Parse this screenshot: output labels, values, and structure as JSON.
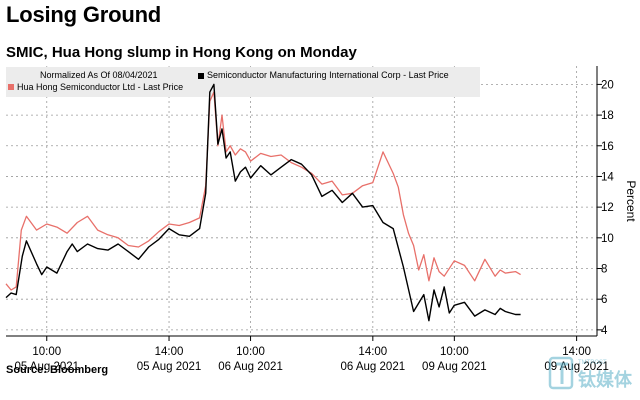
{
  "header": {
    "title": "Losing Ground",
    "subtitle": "SMIC, Hua Hong slump in Hong Kong on Monday"
  },
  "footer": {
    "source": "Source: Bloomberg"
  },
  "watermark": {
    "text": "钛媒体",
    "small": "TMTPOST"
  },
  "chart_data": {
    "type": "line",
    "legend": {
      "note": "Normalized As Of 08/04/2021",
      "placement": "top-left"
    },
    "ylabel": "Percent",
    "ylim": [
      3.6,
      21.2
    ],
    "yticks": [
      4,
      6,
      8,
      10,
      12,
      14,
      16,
      18,
      20
    ],
    "x_range": [
      0,
      58
    ],
    "x_ticks": [
      {
        "x": 4,
        "time": "10:00",
        "date": "05 Aug 2021"
      },
      {
        "x": 16,
        "time": "14:00",
        "date": "05 Aug 2021"
      },
      {
        "x": 24,
        "time": "10:00",
        "date": "06 Aug 2021"
      },
      {
        "x": 36,
        "time": "14:00",
        "date": "06 Aug 2021"
      },
      {
        "x": 44,
        "time": "10:00",
        "date": "09 Aug 2021"
      },
      {
        "x": 56,
        "time": "14:00",
        "date": "09 Aug 2021"
      }
    ],
    "grid": true,
    "series": [
      {
        "name": "Semiconductor Manufacturing International Corp - Last Price",
        "color": "#000000",
        "x": [
          0,
          0.5,
          1,
          1.6,
          2,
          3,
          3.5,
          4,
          5,
          6,
          6.5,
          7,
          8,
          9,
          10,
          11,
          12,
          13,
          14,
          15,
          16,
          17,
          18,
          19,
          19.6,
          20,
          20.4,
          20.8,
          21.2,
          21.6,
          22,
          22.5,
          23,
          23.5,
          24,
          25,
          26,
          27,
          28,
          29,
          30,
          31,
          32,
          33,
          34,
          35,
          36,
          37,
          38,
          39,
          40,
          41,
          41.5,
          42,
          42.5,
          43,
          43.5,
          44,
          45,
          46,
          47,
          48,
          48.5,
          49,
          50,
          50.5
        ],
        "y": [
          6.1,
          6.4,
          6.3,
          8.8,
          9.8,
          8.3,
          7.6,
          8.1,
          7.7,
          9.1,
          9.6,
          9.1,
          9.6,
          9.3,
          9.2,
          9.6,
          9.1,
          8.6,
          9.4,
          9.9,
          10.6,
          10.2,
          10.1,
          10.6,
          12.9,
          19.5,
          20.0,
          16.1,
          17.1,
          15.2,
          15.6,
          13.7,
          14.3,
          14.6,
          13.9,
          14.7,
          14.1,
          14.6,
          15.1,
          14.8,
          14.1,
          12.7,
          13.1,
          12.3,
          12.9,
          12.0,
          12.1,
          11.0,
          10.6,
          8.1,
          5.2,
          6.3,
          4.6,
          6.6,
          5.5,
          6.8,
          5.1,
          5.6,
          5.8,
          4.9,
          5.3,
          5.0,
          5.4,
          5.2,
          5.0,
          5.0
        ]
      },
      {
        "name": "Hua Hong Semiconductor Ltd - Last Price",
        "color": "#e8706a",
        "x": [
          0,
          0.5,
          1,
          1.5,
          2,
          3,
          4,
          5,
          6,
          7,
          8,
          9,
          10,
          11,
          12,
          13,
          14,
          15,
          16,
          17,
          18,
          19,
          19.6,
          20,
          20.4,
          20.8,
          21.2,
          21.6,
          22,
          22.5,
          23,
          23.5,
          24,
          25,
          26,
          27,
          28,
          29,
          30,
          31,
          32,
          33,
          34,
          35,
          36,
          37,
          38,
          38.5,
          39,
          39.5,
          40,
          40.5,
          41,
          41.5,
          42,
          42.5,
          43,
          44,
          45,
          46,
          47,
          48,
          48.5,
          49,
          50,
          50.5
        ],
        "y": [
          7.0,
          6.6,
          6.8,
          10.5,
          11.4,
          10.5,
          10.9,
          10.7,
          10.3,
          11.0,
          11.4,
          10.5,
          10.2,
          10.0,
          9.5,
          9.4,
          9.8,
          10.4,
          10.9,
          10.8,
          11.0,
          11.3,
          13.4,
          18.9,
          19.5,
          16.0,
          18.0,
          15.6,
          16.0,
          15.4,
          15.8,
          15.6,
          15.0,
          15.5,
          15.3,
          15.4,
          14.9,
          14.6,
          14.2,
          13.5,
          13.7,
          12.8,
          12.9,
          13.4,
          13.6,
          15.6,
          14.2,
          13.3,
          11.5,
          10.3,
          9.5,
          7.9,
          8.9,
          7.2,
          8.7,
          7.8,
          7.5,
          8.5,
          8.2,
          7.2,
          8.6,
          7.5,
          7.9,
          7.7,
          7.8,
          7.6
        ]
      }
    ]
  }
}
